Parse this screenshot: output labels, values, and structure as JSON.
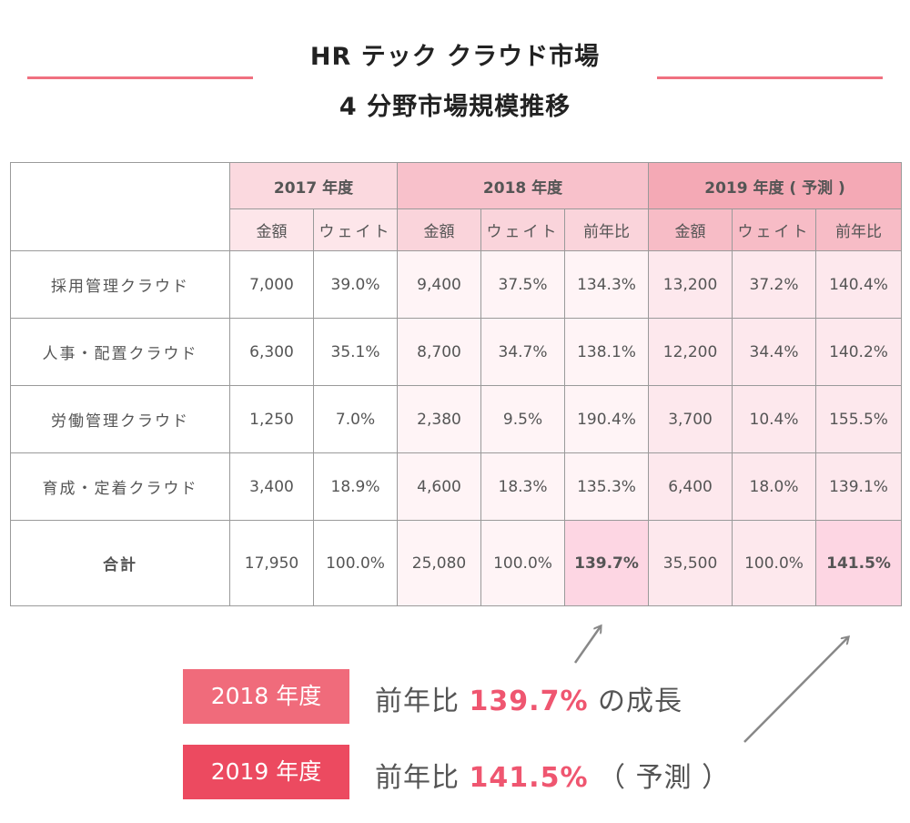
{
  "title": {
    "line1": "HR テック クラウド市場",
    "line2": "4 分野市場規模推移"
  },
  "table": {
    "year_headers": [
      "2017 年度",
      "2018 年度",
      "2019 年度 ( 予測 )"
    ],
    "sub_headers": {
      "amount": "金額",
      "weight": "ウェイト",
      "yoy": "前年比"
    },
    "rows": [
      {
        "label": "採用管理クラウド",
        "cells": [
          "7,000",
          "39.0%",
          "9,400",
          "37.5%",
          "134.3%",
          "13,200",
          "37.2%",
          "140.4%"
        ]
      },
      {
        "label": "人事・配置クラウド",
        "cells": [
          "6,300",
          "35.1%",
          "8,700",
          "34.7%",
          "138.1%",
          "12,200",
          "34.4%",
          "140.2%"
        ]
      },
      {
        "label": "労働管理クラウド",
        "cells": [
          "1,250",
          "7.0%",
          "2,380",
          "9.5%",
          "190.4%",
          "3,700",
          "10.4%",
          "155.5%"
        ]
      },
      {
        "label": "育成・定着クラウド",
        "cells": [
          "3,400",
          "18.9%",
          "4,600",
          "18.3%",
          "135.3%",
          "6,400",
          "18.0%",
          "139.1%"
        ]
      }
    ],
    "total": {
      "label": "合計",
      "cells": [
        "17,950",
        "100.0%",
        "25,080",
        "100.0%",
        "139.7%",
        "35,500",
        "100.0%",
        "141.5%"
      ]
    }
  },
  "summary": {
    "item1": {
      "badge": "2018 年度",
      "prefix": "前年比 ",
      "value": "139.7%",
      "suffix": " の成長"
    },
    "item2": {
      "badge": "2019 年度",
      "prefix": "前年比 ",
      "value": "141.5%",
      "suffix": " （ 予測 ）"
    }
  },
  "colors": {
    "accent": "#ef5670",
    "rule": "#f07080",
    "header_2017": "#fbd9df",
    "header_2018": "#f8c1cb",
    "header_2019": "#f4a9b5",
    "highlight_border": "#e64a64",
    "arrow": "#888888"
  },
  "chart_data": {
    "type": "table",
    "title": "HR テック クラウド市場 4 分野市場規模推移",
    "columns": [
      "",
      "2017 年度 金額",
      "2017 年度 ウェイト",
      "2018 年度 金額",
      "2018 年度 ウェイト",
      "2018 年度 前年比",
      "2019 年度 ( 予測 ) 金額",
      "2019 年度 ( 予測 ) ウェイト",
      "2019 年度 ( 予測 ) 前年比"
    ],
    "rows": [
      [
        "採用管理クラウド",
        7000,
        39.0,
        9400,
        37.5,
        134.3,
        13200,
        37.2,
        140.4
      ],
      [
        "人事・配置クラウド",
        6300,
        35.1,
        8700,
        34.7,
        138.1,
        12200,
        34.4,
        140.2
      ],
      [
        "労働管理クラウド",
        1250,
        7.0,
        2380,
        9.5,
        190.4,
        3700,
        10.4,
        155.5
      ],
      [
        "育成・定着クラウド",
        3400,
        18.9,
        4600,
        18.3,
        135.3,
        6400,
        18.0,
        139.1
      ],
      [
        "合計",
        17950,
        100.0,
        25080,
        100.0,
        139.7,
        35500,
        100.0,
        141.5
      ]
    ],
    "highlighted_cells": [
      "2018 年度 前年比 合計",
      "2019 年度 ( 予測 ) 前年比 合計"
    ]
  }
}
